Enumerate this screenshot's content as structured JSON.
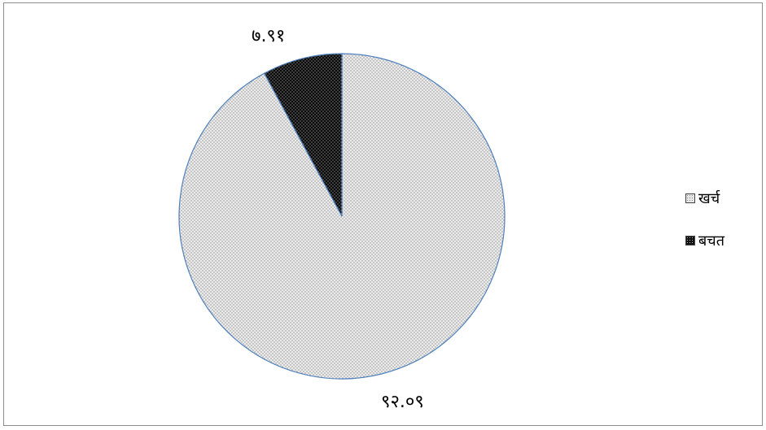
{
  "chart_data": {
    "type": "pie",
    "slices": [
      {
        "name": "खर्च",
        "value": 92.09,
        "label": "९२.०९",
        "color": "#d9d9d9"
      },
      {
        "name": "बचत",
        "value": 7.91,
        "label": "७.९१",
        "color": "#000000"
      }
    ],
    "legend_placement": "right",
    "start_angle": "top, clockwise"
  },
  "legend": {
    "items": [
      {
        "label": "खर्च"
      },
      {
        "label": "बचत"
      }
    ]
  },
  "colors": {
    "slice_outline": "#4f81bd",
    "border": "#8c8c8c"
  }
}
